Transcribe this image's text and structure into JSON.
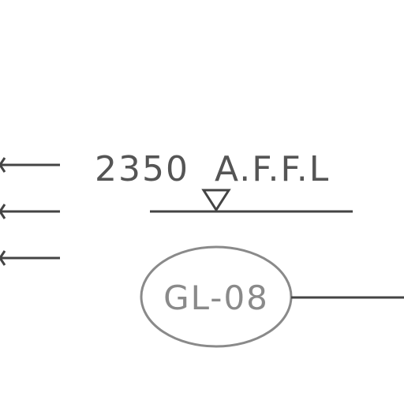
{
  "drawing": {
    "level_annotation": "2350  A.F.F.L",
    "tag_label": "GL-08"
  },
  "colors": {
    "line": "#444444",
    "text": "#555555",
    "tag": "#8a8a8a",
    "background": "#ffffff"
  }
}
